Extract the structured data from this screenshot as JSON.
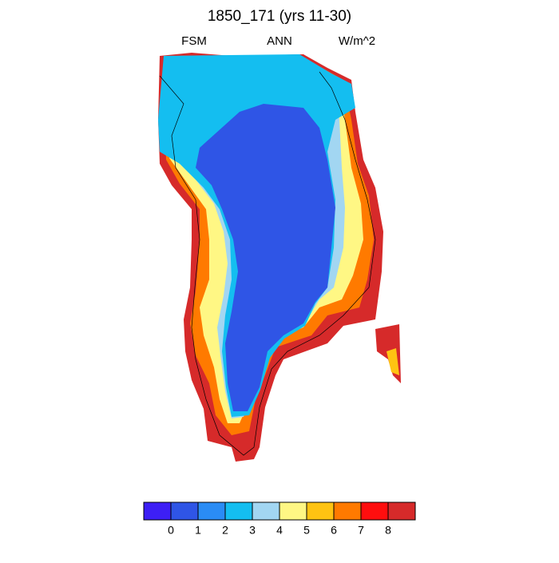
{
  "title": "1850_171 (yrs 11-30)",
  "left_string": "FSM",
  "center_string": "ANN",
  "right_string": "W/m^2",
  "colorbar": {
    "colors": [
      "#3d1ff5",
      "#2f55e6",
      "#2a8cf5",
      "#14bef0",
      "#a2d6f2",
      "#fff784",
      "#ffc312",
      "#ff7a00",
      "#ff0e0e",
      "#d62a2a"
    ],
    "ticks": [
      0,
      1,
      2,
      3,
      4,
      5,
      6,
      7,
      8
    ]
  }
}
